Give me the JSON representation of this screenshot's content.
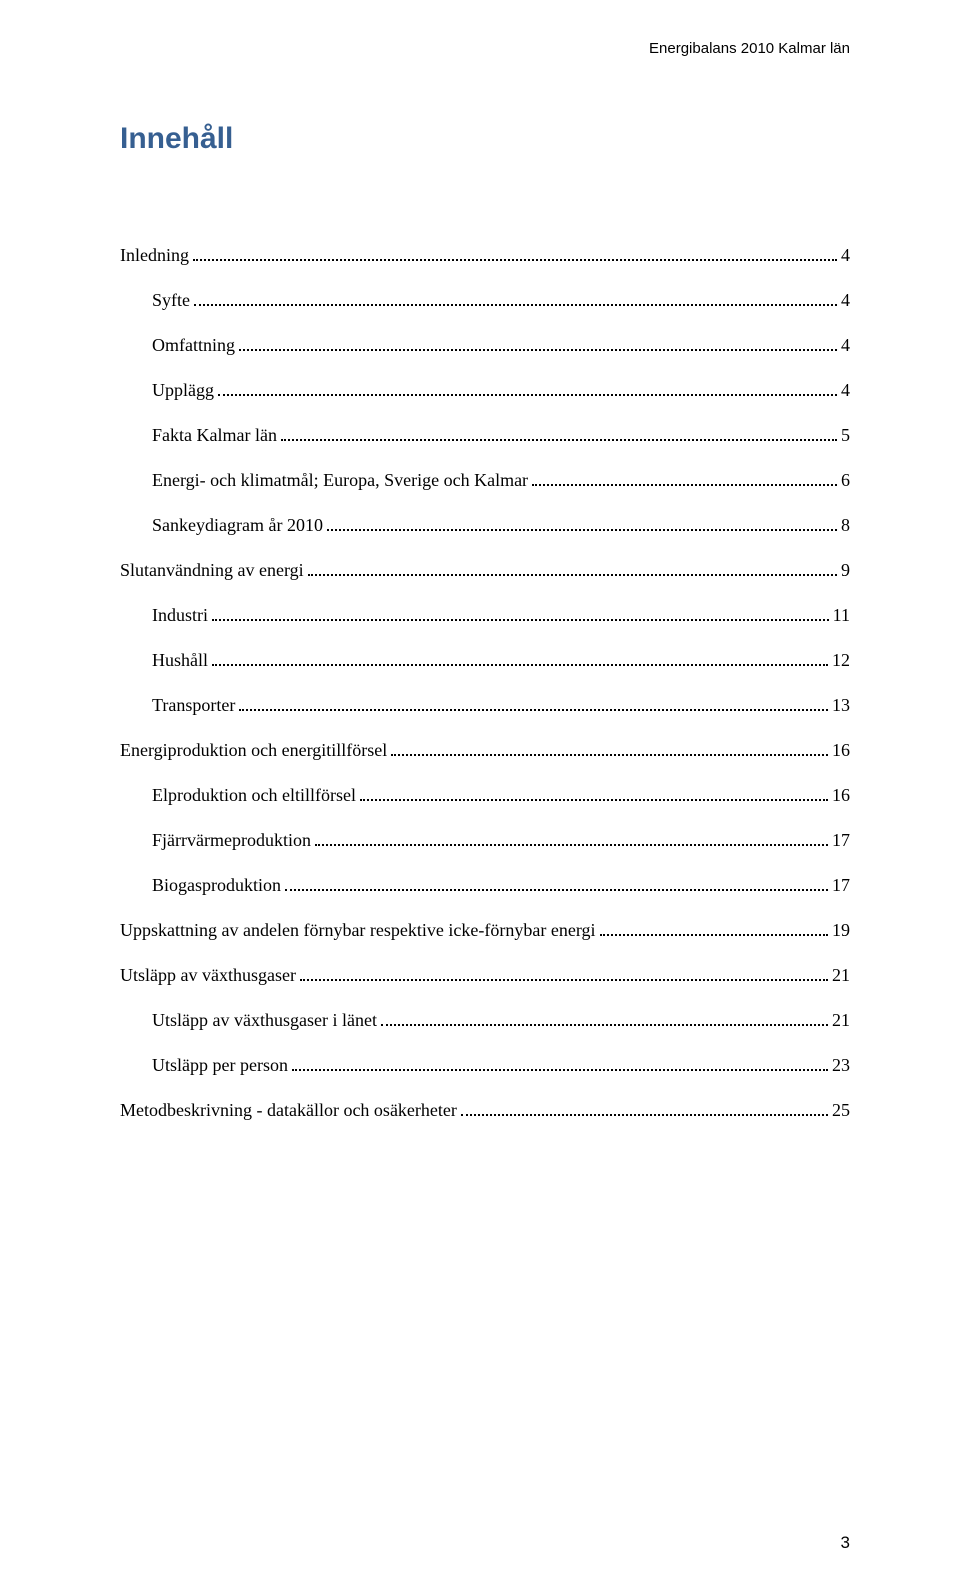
{
  "running_header": "Energibalans 2010 Kalmar län",
  "title": "Innehåll",
  "page_number": "3",
  "colors": {
    "title": "#365f91",
    "text": "#000000",
    "background": "#ffffff",
    "dots": "#000000"
  },
  "typography": {
    "body_font": "Georgia",
    "header_font": "Arial",
    "title_font": "Trebuchet MS",
    "title_fontsize_pt": 22,
    "entry_fontsize_pt": 13
  },
  "toc_entries": [
    {
      "label": "Inledning",
      "page": "4",
      "indent": 0
    },
    {
      "label": "Syfte",
      "page": "4",
      "indent": 1
    },
    {
      "label": "Omfattning",
      "page": "4",
      "indent": 1
    },
    {
      "label": "Upplägg",
      "page": "4",
      "indent": 1
    },
    {
      "label": "Fakta Kalmar län",
      "page": "5",
      "indent": 1
    },
    {
      "label": "Energi- och klimatmål; Europa, Sverige och Kalmar",
      "page": "6",
      "indent": 1
    },
    {
      "label": "Sankeydiagram år 2010",
      "page": "8",
      "indent": 1
    },
    {
      "label": "Slutanvändning av energi",
      "page": "9",
      "indent": 0
    },
    {
      "label": "Industri",
      "page": "11",
      "indent": 1
    },
    {
      "label": "Hushåll",
      "page": "12",
      "indent": 1
    },
    {
      "label": "Transporter",
      "page": "13",
      "indent": 1
    },
    {
      "label": "Energiproduktion och energitillförsel",
      "page": "16",
      "indent": 0
    },
    {
      "label": "Elproduktion och eltillförsel",
      "page": "16",
      "indent": 1
    },
    {
      "label": "Fjärrvärmeproduktion",
      "page": "17",
      "indent": 1
    },
    {
      "label": "Biogasproduktion",
      "page": "17",
      "indent": 1
    },
    {
      "label": "Uppskattning av andelen förnybar respektive icke-förnybar energi",
      "page": "19",
      "indent": 0
    },
    {
      "label": "Utsläpp av växthusgaser",
      "page": "21",
      "indent": 0
    },
    {
      "label": "Utsläpp av växthusgaser i länet",
      "page": "21",
      "indent": 1
    },
    {
      "label": "Utsläpp per person",
      "page": "23",
      "indent": 1
    },
    {
      "label": "Metodbeskrivning - datakällor och osäkerheter",
      "page": "25",
      "indent": 0
    }
  ]
}
